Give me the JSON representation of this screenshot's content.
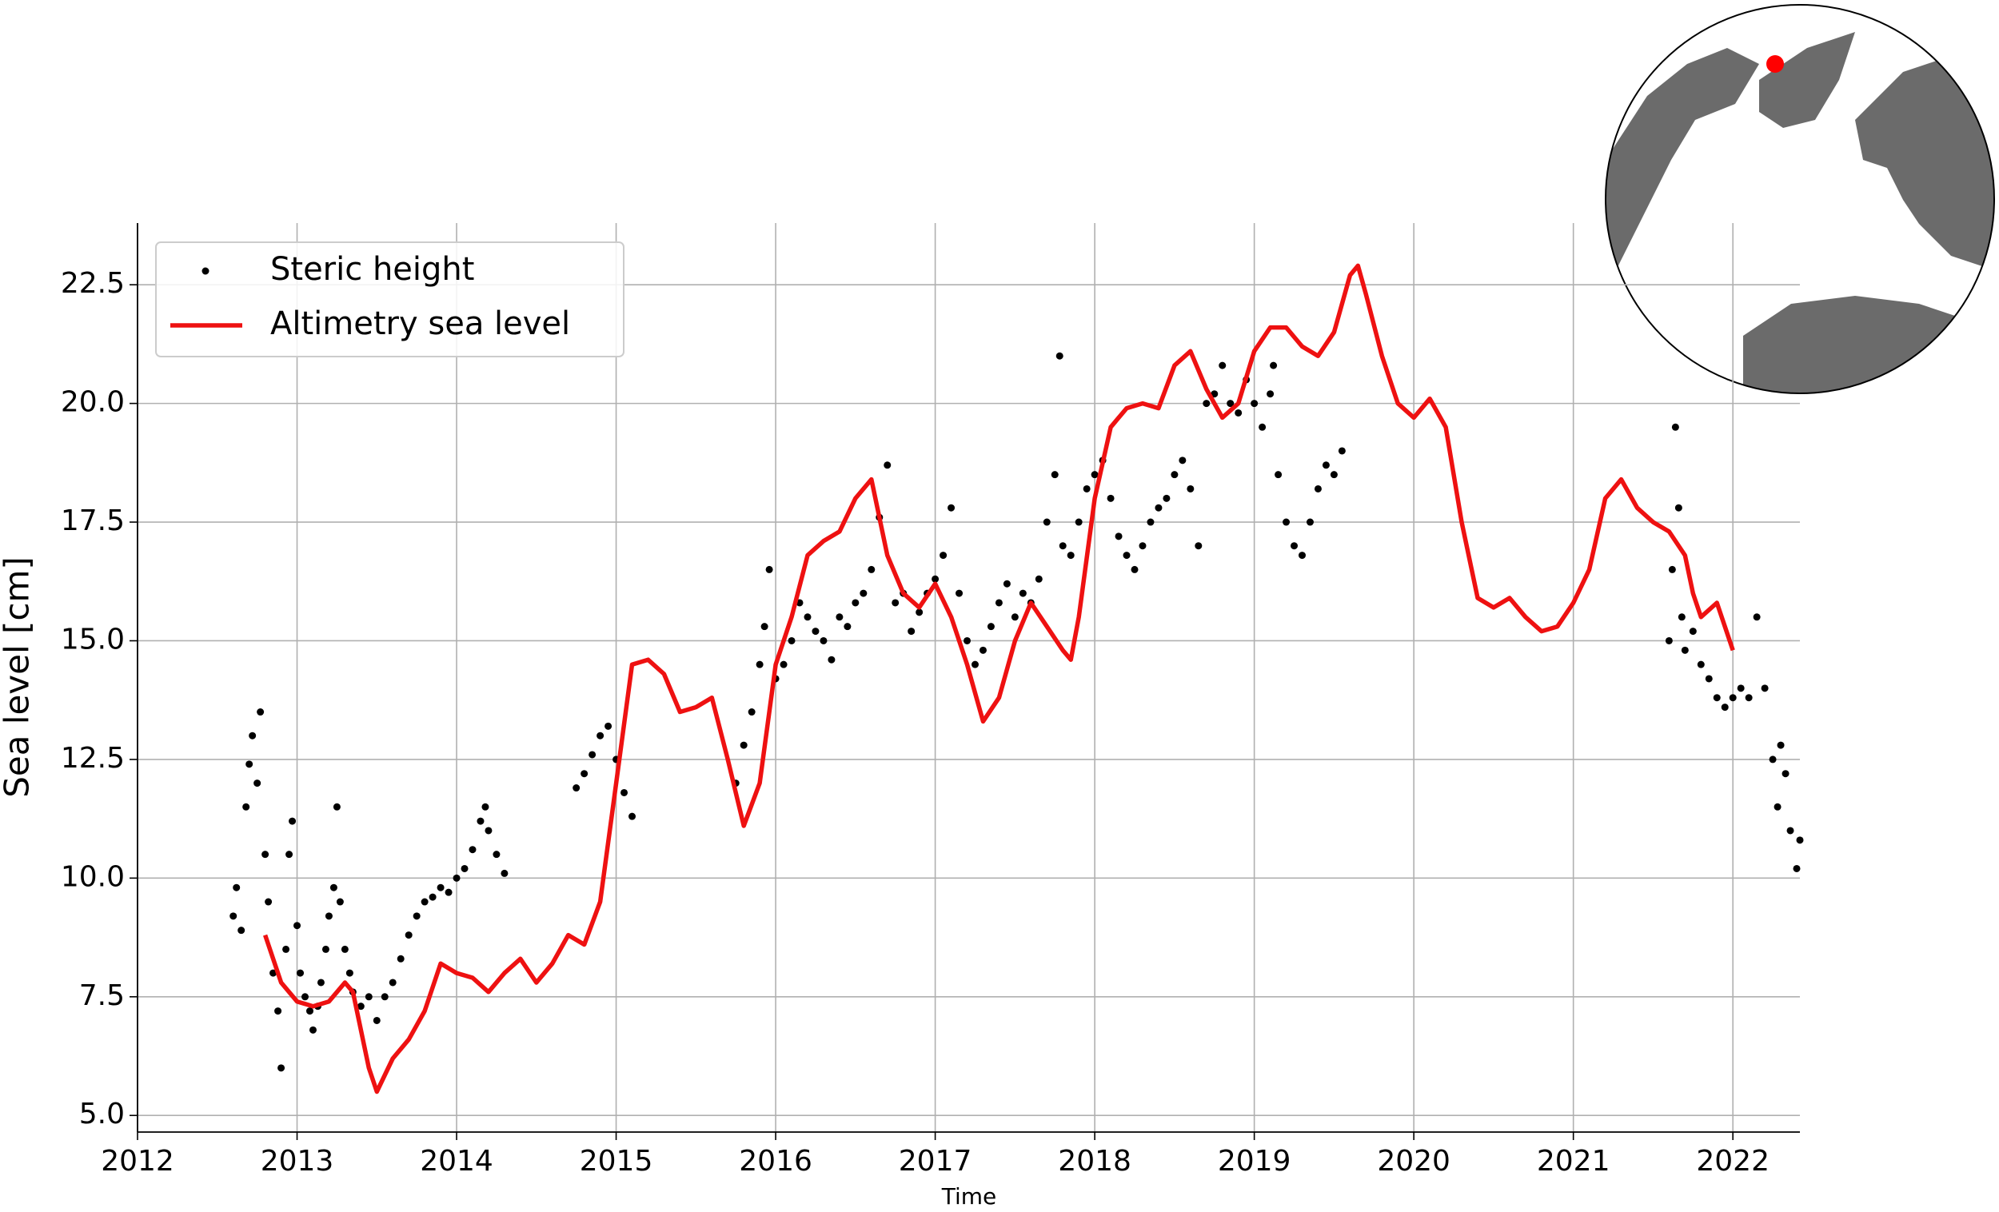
{
  "chart_data": {
    "type": "line",
    "xlabel": "Time",
    "ylabel": "Sea level [cm]",
    "xlim": [
      2012,
      2022.42
    ],
    "ylim": [
      4.65,
      23.8
    ],
    "xticks": [
      2012,
      2013,
      2014,
      2015,
      2016,
      2017,
      2018,
      2019,
      2020,
      2021,
      2022
    ],
    "yticks": [
      {
        "value": 5,
        "label": "5.0"
      },
      7.5,
      {
        "value": 10,
        "label": "10.0"
      },
      12.5,
      {
        "value": 15,
        "label": "15.0"
      },
      17.5,
      {
        "value": 20,
        "label": "20.0"
      },
      22.5
    ],
    "grid": true,
    "legend": "upper left",
    "series": [
      {
        "name": "Steric height",
        "type": "scatter",
        "color": "#000000",
        "x": [
          2012.6,
          2012.62,
          2012.65,
          2012.68,
          2012.7,
          2012.72,
          2012.75,
          2012.77,
          2012.8,
          2012.82,
          2012.85,
          2012.88,
          2012.9,
          2012.93,
          2012.95,
          2012.97,
          2013.0,
          2013.02,
          2013.05,
          2013.08,
          2013.1,
          2013.13,
          2013.15,
          2013.18,
          2013.2,
          2013.23,
          2013.25,
          2013.27,
          2013.3,
          2013.33,
          2013.35,
          2013.4,
          2013.45,
          2013.5,
          2013.55,
          2013.6,
          2013.65,
          2013.7,
          2013.75,
          2013.8,
          2013.85,
          2013.9,
          2013.95,
          2014.0,
          2014.05,
          2014.1,
          2014.15,
          2014.18,
          2014.2,
          2014.25,
          2014.3,
          2014.75,
          2014.8,
          2014.85,
          2014.9,
          2014.95,
          2015.0,
          2015.05,
          2015.1,
          2015.75,
          2015.8,
          2015.85,
          2015.9,
          2015.93,
          2015.96,
          2016.0,
          2016.05,
          2016.1,
          2016.15,
          2016.2,
          2016.25,
          2016.3,
          2016.35,
          2016.4,
          2016.45,
          2016.5,
          2016.55,
          2016.6,
          2016.65,
          2016.7,
          2016.75,
          2016.8,
          2016.85,
          2016.9,
          2016.95,
          2017.0,
          2017.05,
          2017.1,
          2017.15,
          2017.2,
          2017.25,
          2017.3,
          2017.35,
          2017.4,
          2017.45,
          2017.5,
          2017.55,
          2017.6,
          2017.65,
          2017.7,
          2017.75,
          2017.78,
          2017.8,
          2017.85,
          2017.9,
          2017.95,
          2018.0,
          2018.05,
          2018.1,
          2018.15,
          2018.2,
          2018.25,
          2018.3,
          2018.35,
          2018.4,
          2018.45,
          2018.5,
          2018.55,
          2018.6,
          2018.65,
          2018.7,
          2018.75,
          2018.8,
          2018.85,
          2018.9,
          2018.95,
          2019.0,
          2019.05,
          2019.1,
          2019.12,
          2019.15,
          2019.2,
          2019.25,
          2019.3,
          2019.35,
          2019.4,
          2019.45,
          2019.5,
          2019.55,
          2021.6,
          2021.62,
          2021.64,
          2021.66,
          2021.68,
          2021.7,
          2021.75,
          2021.8,
          2021.85,
          2021.9,
          2021.95,
          2022.0,
          2022.05,
          2022.1,
          2022.15,
          2022.2,
          2022.25,
          2022.28,
          2022.3,
          2022.33,
          2022.36,
          2022.4,
          2022.42
        ],
        "values": [
          9.2,
          9.8,
          8.9,
          11.5,
          12.4,
          13.0,
          12.0,
          13.5,
          10.5,
          9.5,
          8.0,
          7.2,
          6.0,
          8.5,
          10.5,
          11.2,
          9.0,
          8.0,
          7.5,
          7.2,
          6.8,
          7.3,
          7.8,
          8.5,
          9.2,
          9.8,
          11.5,
          9.5,
          8.5,
          8.0,
          7.6,
          7.3,
          7.5,
          7.0,
          7.5,
          7.8,
          8.3,
          8.8,
          9.2,
          9.5,
          9.6,
          9.8,
          9.7,
          10.0,
          10.2,
          10.6,
          11.2,
          11.5,
          11.0,
          10.5,
          10.1,
          11.9,
          12.2,
          12.6,
          13.0,
          13.2,
          12.5,
          11.8,
          11.3,
          12.0,
          12.8,
          13.5,
          14.5,
          15.3,
          16.5,
          14.2,
          14.5,
          15.0,
          15.8,
          15.5,
          15.2,
          15.0,
          14.6,
          15.5,
          15.3,
          15.8,
          16.0,
          16.5,
          17.6,
          18.7,
          15.8,
          16.0,
          15.2,
          15.6,
          16.0,
          16.3,
          16.8,
          17.8,
          16.0,
          15.0,
          14.5,
          14.8,
          15.3,
          15.8,
          16.2,
          15.5,
          16.0,
          15.8,
          16.3,
          17.5,
          18.5,
          21.0,
          17.0,
          16.8,
          17.5,
          18.2,
          18.5,
          18.8,
          18.0,
          17.2,
          16.8,
          16.5,
          17.0,
          17.5,
          17.8,
          18.0,
          18.5,
          18.8,
          18.2,
          17.0,
          20.0,
          20.2,
          20.8,
          20.0,
          19.8,
          20.5,
          20.0,
          19.5,
          20.2,
          20.8,
          18.5,
          17.5,
          17.0,
          16.8,
          17.5,
          18.2,
          18.7,
          18.5,
          19.0,
          15.0,
          16.5,
          19.5,
          17.8,
          15.5,
          14.8,
          15.2,
          14.5,
          14.2,
          13.8,
          13.6,
          13.8,
          14.0,
          13.8,
          15.5,
          14.0,
          12.5,
          11.5,
          12.8,
          12.2,
          11.0,
          10.2,
          10.8
        ]
      },
      {
        "name": "Altimetry sea level",
        "type": "line",
        "color": "#ee1111",
        "x": [
          2012.8,
          2012.9,
          2013.0,
          2013.1,
          2013.2,
          2013.3,
          2013.35,
          2013.45,
          2013.5,
          2013.6,
          2013.7,
          2013.8,
          2013.9,
          2014.0,
          2014.1,
          2014.2,
          2014.3,
          2014.4,
          2014.5,
          2014.6,
          2014.7,
          2014.8,
          2014.9,
          2015.0,
          2015.1,
          2015.2,
          2015.3,
          2015.4,
          2015.5,
          2015.6,
          2015.7,
          2015.8,
          2015.9,
          2016.0,
          2016.1,
          2016.2,
          2016.3,
          2016.4,
          2016.5,
          2016.6,
          2016.7,
          2016.8,
          2016.9,
          2017.0,
          2017.1,
          2017.2,
          2017.3,
          2017.4,
          2017.5,
          2017.6,
          2017.7,
          2017.8,
          2017.85,
          2017.9,
          2018.0,
          2018.1,
          2018.2,
          2018.3,
          2018.4,
          2018.5,
          2018.6,
          2018.7,
          2018.8,
          2018.9,
          2019.0,
          2019.1,
          2019.2,
          2019.3,
          2019.4,
          2019.5,
          2019.6,
          2019.65,
          2019.7,
          2019.8,
          2019.9,
          2020.0,
          2020.1,
          2020.2,
          2020.3,
          2020.4,
          2020.5,
          2020.6,
          2020.7,
          2020.8,
          2020.9,
          2021.0,
          2021.1,
          2021.2,
          2021.3,
          2021.4,
          2021.5,
          2021.6,
          2021.7,
          2021.75,
          2021.8,
          2021.9,
          2022.0
        ],
        "values": [
          8.8,
          7.8,
          7.4,
          7.3,
          7.4,
          7.8,
          7.6,
          6.0,
          5.5,
          6.2,
          6.6,
          7.2,
          8.2,
          8.0,
          7.9,
          7.6,
          8.0,
          8.3,
          7.8,
          8.2,
          8.8,
          8.6,
          9.5,
          12.0,
          14.5,
          14.6,
          14.3,
          13.5,
          13.6,
          13.8,
          12.5,
          11.1,
          12.0,
          14.5,
          15.5,
          16.8,
          17.1,
          17.3,
          18.0,
          18.4,
          16.8,
          16.0,
          15.7,
          16.2,
          15.5,
          14.5,
          13.3,
          13.8,
          15.0,
          15.8,
          15.3,
          14.8,
          14.6,
          15.5,
          18.0,
          19.5,
          19.9,
          20.0,
          19.9,
          20.8,
          21.1,
          20.3,
          19.7,
          20.0,
          21.1,
          21.6,
          21.6,
          21.2,
          21.0,
          21.5,
          22.7,
          22.9,
          22.3,
          21.0,
          20.0,
          19.7,
          20.1,
          19.5,
          17.5,
          15.9,
          15.7,
          15.9,
          15.5,
          15.2,
          15.3,
          15.8,
          16.5,
          18.0,
          18.4,
          17.8,
          17.5,
          17.3,
          16.8,
          16.0,
          15.5,
          15.8,
          14.8
        ]
      }
    ]
  }
}
